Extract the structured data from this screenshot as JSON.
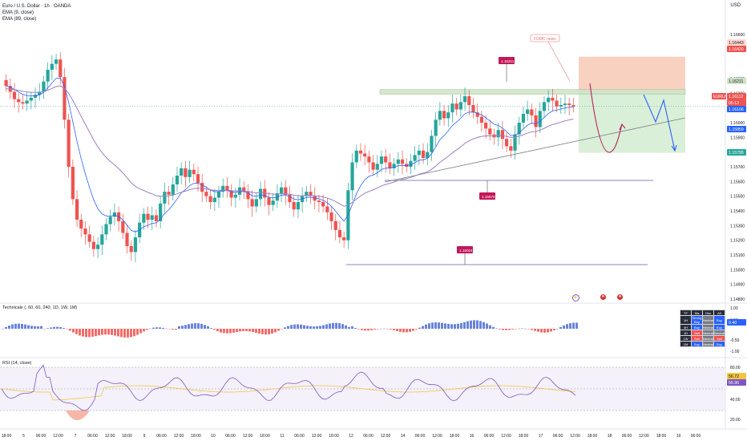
{
  "header": {
    "symbol_line": "Euro / U.S. Dollar · 1h · OANDA",
    "indicator_1": "EMA (9, close)",
    "indicator_2": "EMA (89, close)",
    "currency": "USD"
  },
  "technicals_panel": {
    "label": "Technicals (, 60, 60, 240, 1D, 1W, 1M)",
    "axis_ticks": [
      "1.00",
      "0.50",
      "-0.50",
      "-1.00"
    ],
    "current_value_badge": "0.40",
    "table_headers": [
      "TF",
      "Ma",
      "Osc",
      "All"
    ],
    "table_rows": [
      [
        "1H",
        "Strong Buy",
        "Neutral",
        "Buy"
      ],
      [
        "4H",
        "Buy",
        "Neutral",
        "Buy"
      ],
      [
        "1D",
        "Sell",
        "Neutral",
        "Neutral"
      ],
      [
        "1W",
        "Sell",
        "Neutral",
        "Sell"
      ],
      [
        "1M",
        "Buy",
        "Neutral",
        "Buy"
      ]
    ]
  },
  "rsi_panel": {
    "label": "RSI (14, close)",
    "axis_ticks": [
      "80.00",
      "40.00",
      "20.00"
    ],
    "badges": [
      "56.72",
      "55.90"
    ]
  },
  "annotations": {
    "fomc_label": "FOMC news",
    "level_high_label": "1.16211",
    "level_mid_label": "1.15575",
    "level_low_label": "1.15024"
  },
  "price_badges": {
    "tp_top": "1.16443",
    "tp_top2": "1.16420",
    "resistance": "1.16211",
    "symbol_tag": "EURUSD",
    "last_price": "1.16112",
    "countdown": "05:13",
    "ema_a": "1.16106",
    "ema_b": "1.15859",
    "stop_bottom": "1.15795"
  },
  "chart_data": {
    "type": "candlestick",
    "symbol": "EURUSD",
    "timeframe": "1h",
    "price_axis_ticks": [
      1.166,
      1.163,
      1.162,
      1.161,
      1.16,
      1.159,
      1.158,
      1.157,
      1.156,
      1.155,
      1.154,
      1.153,
      1.152,
      1.151,
      1.15,
      1.149,
      1.148
    ],
    "x_axis_ticks": [
      "18:00",
      "5",
      "06:00",
      "12:00",
      "7",
      "06:00",
      "12:00",
      "18:00",
      "9",
      "06:00",
      "12:00",
      "18:00",
      "10",
      "06:00",
      "12:00",
      "18:00",
      "11",
      "06:00",
      "12:00",
      "18:00",
      "12",
      "06:00",
      "12:00",
      "14",
      "06:00",
      "12:00",
      "18:00",
      "16",
      "06:00",
      "12:00",
      "18:00",
      "17",
      "06:00",
      "12:00",
      "18:00",
      "18",
      "06:00",
      "12:00",
      "18:00",
      "19",
      "06:00"
    ],
    "closes": [
      1.1625,
      1.1621,
      1.1616,
      1.1614,
      1.1613,
      1.1615,
      1.1617,
      1.1619,
      1.1621,
      1.1628,
      1.1636,
      1.164,
      1.1643,
      1.1631,
      1.1602,
      1.157,
      1.1548,
      1.1534,
      1.1528,
      1.1524,
      1.1519,
      1.1514,
      1.1517,
      1.1524,
      1.1531,
      1.1536,
      1.1539,
      1.1533,
      1.1525,
      1.1516,
      1.1512,
      1.1522,
      1.1532,
      1.1538,
      1.1534,
      1.1537,
      1.1533,
      1.1545,
      1.1553,
      1.1551,
      1.1558,
      1.1564,
      1.1569,
      1.1563,
      1.1568,
      1.1565,
      1.1559,
      1.1553,
      1.155,
      1.1546,
      1.1549,
      1.1553,
      1.1557,
      1.1554,
      1.1549,
      1.1551,
      1.1556,
      1.1553,
      1.1548,
      1.1543,
      1.1548,
      1.1555,
      1.1549,
      1.1544,
      1.1547,
      1.1552,
      1.1556,
      1.1551,
      1.1546,
      1.1541,
      1.1546,
      1.155,
      1.1553,
      1.155,
      1.1547,
      1.1546,
      1.1543,
      1.1539,
      1.1533,
      1.1527,
      1.1522,
      1.152,
      1.1554,
      1.1573,
      1.1581,
      1.1579,
      1.1577,
      1.1573,
      1.1568,
      1.1572,
      1.1577,
      1.1573,
      1.1569,
      1.1572,
      1.1575,
      1.1572,
      1.157,
      1.1574,
      1.1578,
      1.1581,
      1.1576,
      1.158,
      1.1591,
      1.1602,
      1.1608,
      1.1603,
      1.1607,
      1.1613,
      1.1609,
      1.1614,
      1.1618,
      1.1612,
      1.1607,
      1.1604,
      1.16,
      1.1596,
      1.1592,
      1.159,
      1.1595,
      1.1589,
      1.1584,
      1.1581,
      1.1592,
      1.16,
      1.1606,
      1.1609,
      1.1605,
      1.1597,
      1.1608,
      1.1614,
      1.1617,
      1.1615,
      1.1611,
      1.1612,
      1.1613,
      1.1612,
      1.1611
    ],
    "series": [
      {
        "name": "EMA (9, close)",
        "color": "#2962ff"
      },
      {
        "name": "EMA (89, close)",
        "color": "#9c7fc0"
      }
    ],
    "levels": [
      {
        "label": "1.16211",
        "value": 1.16211
      },
      {
        "label": "1.15575",
        "value": 1.15575
      },
      {
        "label": "1.15024",
        "value": 1.15024
      }
    ],
    "position": {
      "entry": 1.1621,
      "target_top": 1.16443,
      "stop": 1.15795
    },
    "colors": {
      "up": "#26a69a",
      "down": "#ef5350",
      "rsi": "#7e57c2",
      "rsi_ma": "#f5c542"
    }
  }
}
